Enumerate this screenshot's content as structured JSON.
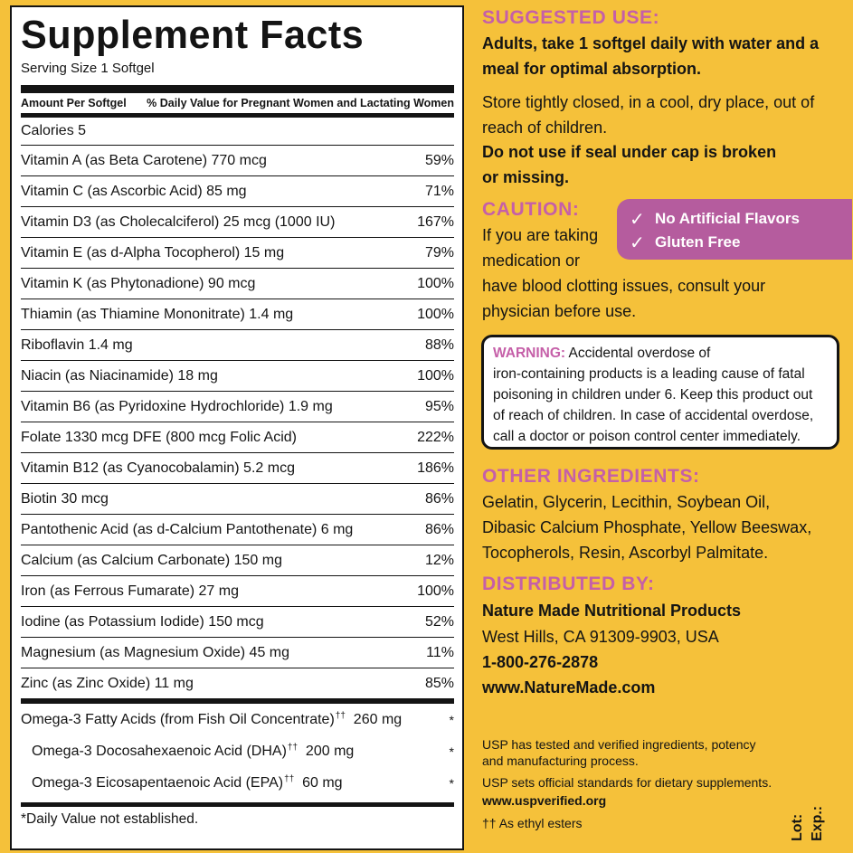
{
  "facts": {
    "title": "Supplement Facts",
    "serving_size": "Serving Size 1 Softgel",
    "header_amount": "Amount Per Softgel",
    "header_dv": "% Daily Value for Pregnant Women and Lactating Women",
    "rows": [
      {
        "name": "Calories  5",
        "dv": ""
      },
      {
        "name": "Vitamin A (as Beta Carotene)  770 mcg",
        "dv": "59%"
      },
      {
        "name": "Vitamin C (as Ascorbic Acid)  85 mg",
        "dv": "71%"
      },
      {
        "name": "Vitamin D3 (as Cholecalciferol)  25 mcg (1000 IU)",
        "dv": "167%"
      },
      {
        "name": "Vitamin E (as d-Alpha Tocopherol)  15 mg",
        "dv": "79%"
      },
      {
        "name": "Vitamin K (as Phytonadione)  90 mcg",
        "dv": "100%"
      },
      {
        "name": "Thiamin (as Thiamine Mononitrate)  1.4 mg",
        "dv": "100%"
      },
      {
        "name": "Riboflavin  1.4 mg",
        "dv": "88%"
      },
      {
        "name": "Niacin (as Niacinamide)  18 mg",
        "dv": "100%"
      },
      {
        "name": "Vitamin B6 (as Pyridoxine Hydrochloride)  1.9 mg",
        "dv": "95%"
      },
      {
        "name": "Folate  1330 mcg DFE (800 mcg Folic Acid)",
        "dv": "222%"
      },
      {
        "name": "Vitamin B12 (as Cyanocobalamin)  5.2 mcg",
        "dv": "186%"
      },
      {
        "name": "Biotin  30 mcg",
        "dv": "86%"
      },
      {
        "name": "Pantothenic Acid (as d-Calcium Pantothenate)  6 mg",
        "dv": "86%"
      },
      {
        "name": "Calcium (as Calcium Carbonate)  150 mg",
        "dv": "12%"
      },
      {
        "name": "Iron (as Ferrous Fumarate)  27 mg",
        "dv": "100%"
      },
      {
        "name": "Iodine (as Potassium Iodide)  150 mcg",
        "dv": "52%"
      },
      {
        "name": "Magnesium (as Magnesium Oxide)  45 mg",
        "dv": "11%"
      },
      {
        "name": "Zinc (as Zinc Oxide)  11 mg",
        "dv": "85%"
      }
    ],
    "omega": [
      {
        "name": "Omega-3 Fatty Acids (from Fish Oil Concentrate)",
        "mark": "††",
        "amount": "260 mg",
        "dv": "*"
      },
      {
        "name": "Omega-3 Docosahexaenoic Acid (DHA)",
        "mark": "††",
        "amount": "200 mg",
        "dv": "*"
      },
      {
        "name": "Omega-3 Eicosapentaenoic Acid (EPA)",
        "mark": "††",
        "amount": "60 mg",
        "dv": "*"
      }
    ],
    "footnote": "*Daily Value not established."
  },
  "suggested_use": {
    "heading": "SUGGESTED USE:",
    "directions": [
      "Adults, take 1 softgel daily with water and a",
      "meal for optimal absorption."
    ],
    "storage": [
      "Store tightly closed, in a cool, dry place, out of",
      "reach of children."
    ],
    "seal": [
      "Do not use if seal under cap is broken",
      "or missing."
    ]
  },
  "caution": {
    "heading": "CAUTION:",
    "lines": [
      "If you are taking",
      "medication or",
      "have blood clotting issues, consult your",
      "physician before use."
    ]
  },
  "badges": {
    "check_glyph": "✓",
    "items": [
      "No Artificial Flavors",
      "Gluten Free"
    ]
  },
  "warning": {
    "label": "WARNING:",
    "first_line": " Accidental overdose of",
    "lines": [
      "iron-containing products is a leading cause of fatal",
      "poisoning in children under 6. Keep this product out",
      "of reach of children. In case of accidental overdose,",
      "call a doctor or poison control center immediately."
    ]
  },
  "other_ingredients": {
    "heading": "OTHER INGREDIENTS:",
    "lines": [
      "Gelatin, Glycerin, Lecithin, Soybean Oil,",
      "Dibasic Calcium Phosphate, Yellow Beeswax,",
      "Tocopherols, Resin, Ascorbyl Palmitate."
    ]
  },
  "distributed": {
    "heading": "DISTRIBUTED BY:",
    "company": "Nature Made Nutritional Products",
    "address": "West Hills, CA 91309-9903, USA",
    "phone": "1-800-276-2878",
    "website": "www.NatureMade.com"
  },
  "usp": {
    "lines": [
      "USP has tested and verified ingredients, potency",
      "and manufacturing process.",
      "USP sets official standards for dietary supplements."
    ],
    "url": "www.uspverified.org",
    "esters": "†† As ethyl esters"
  },
  "lot_exp": {
    "lot": "Lot:",
    "exp": "Exp.:"
  },
  "colors": {
    "background": "#f5c13a",
    "accent_pink": "#c55fa8",
    "badge": "#b55c9e",
    "ink": "#141414"
  }
}
